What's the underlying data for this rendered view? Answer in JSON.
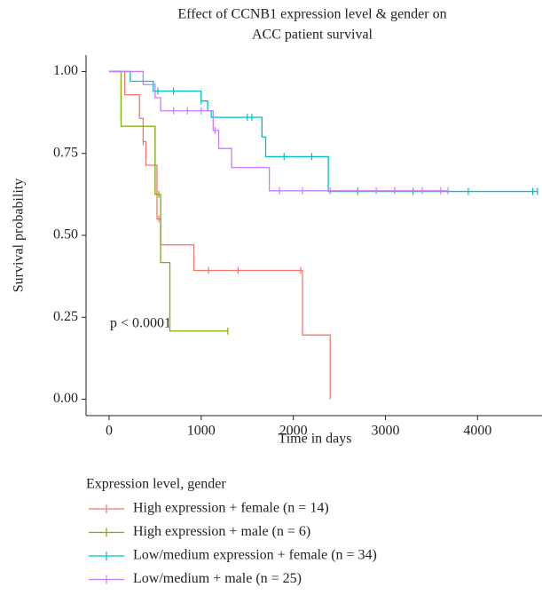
{
  "chart_data": {
    "type": "step",
    "title": [
      "Effect of CCNB1 expression level & gender on",
      "ACC patient survival"
    ],
    "xlabel": "Time in days",
    "ylabel": "Survival probability",
    "annotation": "p < 0.0001",
    "legend_title": "Expression level, gender",
    "xlim": [
      -250,
      4700
    ],
    "ylim": [
      -0.05,
      1.05
    ],
    "xticks": [
      0,
      1000,
      2000,
      3000,
      4000
    ],
    "yticks": [
      {
        "value": 0,
        "label": "0.00"
      },
      {
        "value": 0.25,
        "label": "0.25"
      },
      {
        "value": 0.5,
        "label": "0.50"
      },
      {
        "value": 0.75,
        "label": "0.75"
      },
      {
        "value": 1,
        "label": "1.00"
      }
    ],
    "series": [
      {
        "name": "High expression + female (n = 14)",
        "color": "#F8766D",
        "x": [
          0,
          170,
          330,
          370,
          400,
          520,
          560,
          920,
          2100,
          2400
        ],
        "values": [
          1,
          0.929,
          0.857,
          0.786,
          0.714,
          0.55,
          0.471,
          0.393,
          0.196,
          0
        ],
        "censor_x": [
          370,
          540,
          1080,
          1400,
          2080
        ]
      },
      {
        "name": "High expression + male (n = 6)",
        "color": "#7CAE00",
        "x": [
          0,
          130,
          500,
          560,
          660,
          1290
        ],
        "values": [
          1,
          0.833,
          0.625,
          0.417,
          0.208,
          0.208
        ],
        "censor_x": [
          540,
          1290
        ]
      },
      {
        "name": "Low/medium expression + female (n = 34)",
        "color": "#00BFC4",
        "x": [
          0,
          230,
          480,
          1000,
          1070,
          1110,
          1660,
          1700,
          2380,
          4650
        ],
        "values": [
          1,
          0.97,
          0.94,
          0.91,
          0.88,
          0.86,
          0.8,
          0.74,
          0.634,
          0.634
        ],
        "censor_x": [
          530,
          700,
          1000,
          1500,
          1550,
          1900,
          2200,
          2700,
          3300,
          3900,
          4600,
          4650
        ]
      },
      {
        "name": "Low/medium + male (n = 25)",
        "color": "#C77CFF",
        "x": [
          0,
          370,
          500,
          560,
          1130,
          1190,
          1330,
          1740,
          3680
        ],
        "values": [
          1,
          0.96,
          0.92,
          0.88,
          0.82,
          0.765,
          0.707,
          0.636,
          0.636
        ],
        "censor_x": [
          700,
          850,
          1000,
          1150,
          1850,
          2100,
          2400,
          2900,
          3100,
          3400,
          3600,
          3680
        ]
      }
    ]
  }
}
